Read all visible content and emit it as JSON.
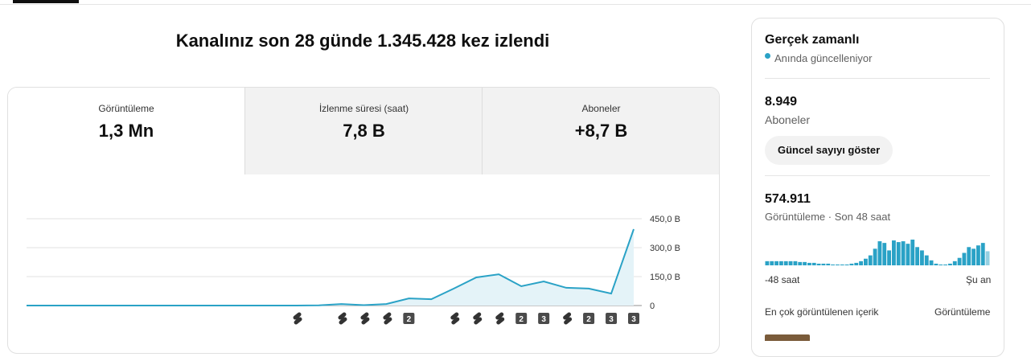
{
  "header": {
    "title": "Kanalınız son 28 günde 1.345.428 kez izlendi"
  },
  "tabs": [
    {
      "label": "Görüntüleme",
      "value": "1,3 Mn"
    },
    {
      "label": "İzlenme süresi (saat)",
      "value": "7,8 B"
    },
    {
      "label": "Aboneler",
      "value": "+8,7 B"
    }
  ],
  "chart": {
    "type": "line",
    "color": "#2aa2c6",
    "values": [
      0,
      0,
      0,
      0,
      0,
      0,
      0,
      0,
      0,
      0,
      0,
      0,
      0,
      1,
      8,
      2,
      8,
      37,
      33,
      88,
      146,
      162,
      100,
      125,
      92,
      88,
      62,
      396
    ],
    "ylim": [
      0,
      450
    ],
    "yticks": [
      {
        "value": 0,
        "label": "0"
      },
      {
        "value": 150,
        "label": "150,0 B"
      },
      {
        "value": 300,
        "label": "300,0 B"
      },
      {
        "value": 450,
        "label": "450,0 B"
      }
    ],
    "upload_counts": [
      null,
      null,
      null,
      null,
      null,
      null,
      null,
      null,
      null,
      null,
      null,
      null,
      null,
      null,
      null,
      null,
      null,
      "2",
      null,
      null,
      null,
      null,
      "2",
      "3",
      null,
      "2",
      "3",
      "3"
    ]
  },
  "realtime": {
    "title": "Gerçek zamanlı",
    "status": "Anında güncelleniyor",
    "subscribers": "8.949",
    "subscribers_label": "Aboneler",
    "button": "Güncel sayıyı göster",
    "views": "574.911",
    "views_label": "Görüntüleme · Son 48 saat",
    "bars": {
      "type": "bar",
      "color": "#2aa2c6",
      "values": [
        5,
        5,
        5,
        5,
        5,
        5,
        5,
        4,
        4,
        3,
        3,
        2,
        2,
        2,
        1,
        1,
        1,
        1,
        2,
        3,
        5,
        8,
        12,
        20,
        29,
        27,
        18,
        30,
        28,
        29,
        26,
        31,
        22,
        18,
        12,
        6,
        2,
        1,
        1,
        2,
        5,
        9,
        15,
        22,
        20,
        24,
        27,
        17
      ]
    },
    "start_label": "-48 saat",
    "end_label": "Şu an",
    "top_content": "En çok görüntülenen içerik",
    "top_content_metric": "Görüntüleme"
  }
}
